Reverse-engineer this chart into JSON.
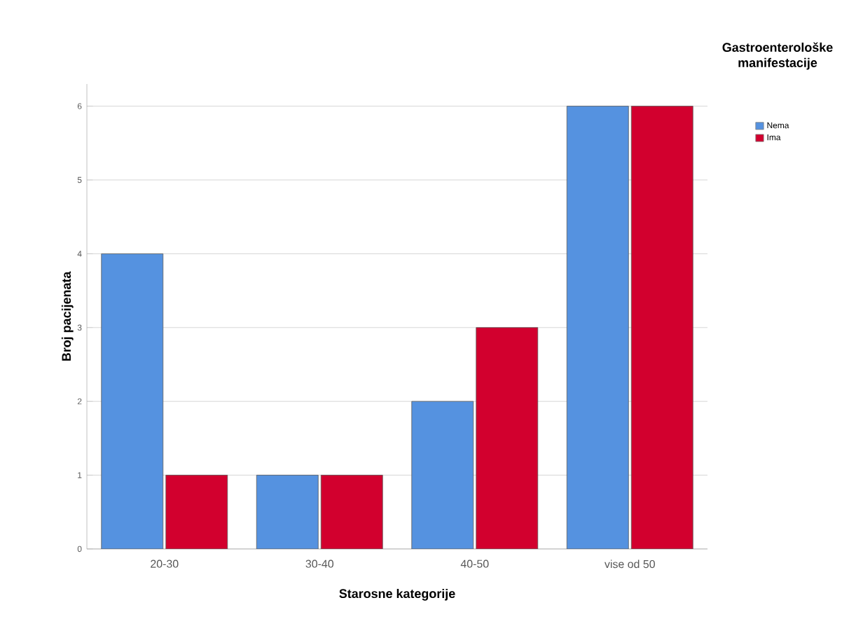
{
  "chart_data": {
    "type": "bar",
    "xlabel": "Starosne kategorije",
    "ylabel": "Broj pacijenata",
    "legend_title": "Gastroenterološke manifestacije",
    "categories": [
      "20-30",
      "30-40",
      "40-50",
      "vise od 50"
    ],
    "series": [
      {
        "name": "Nema",
        "color": "#5592e0",
        "values": [
          4,
          1,
          2,
          6
        ]
      },
      {
        "name": "Ima",
        "color": "#d2002e",
        "values": [
          1,
          1,
          3,
          6
        ]
      }
    ],
    "ylim": [
      0,
      6.3
    ],
    "yticks": [
      0,
      1,
      2,
      3,
      4,
      5,
      6
    ],
    "grid": "y",
    "legend": "top right"
  }
}
